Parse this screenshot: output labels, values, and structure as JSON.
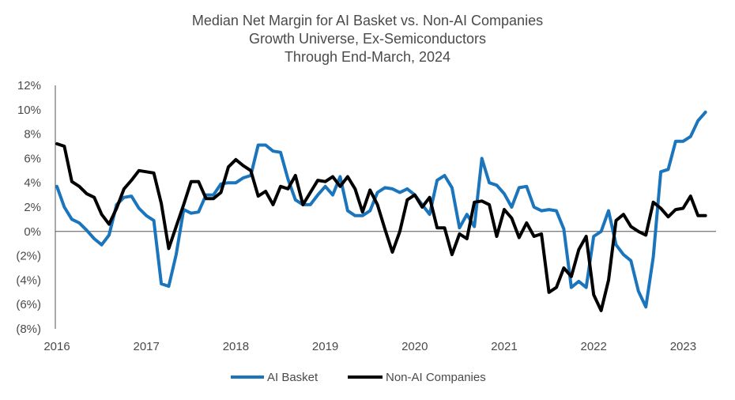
{
  "chart_data": {
    "type": "line",
    "title_lines": [
      "Median Net Margin for AI Basket vs. Non-AI Companies",
      "Growth Universe, Ex-Semiconductors",
      "Through End-March, 2024"
    ],
    "xlabel": "",
    "ylabel": "",
    "x_start": 2016.0,
    "x_step": 0.08333,
    "xlim": [
      2016.0,
      2023.35
    ],
    "ylim": [
      -8,
      12
    ],
    "y_ticks": [
      {
        "value": 12,
        "label": "12%"
      },
      {
        "value": 10,
        "label": "10%"
      },
      {
        "value": 8,
        "label": "8%"
      },
      {
        "value": 6,
        "label": "6%"
      },
      {
        "value": 4,
        "label": "4%"
      },
      {
        "value": 2,
        "label": "2%"
      },
      {
        "value": 0,
        "label": "0%"
      },
      {
        "value": -2,
        "label": "(2%)"
      },
      {
        "value": -4,
        "label": "(4%)"
      },
      {
        "value": -6,
        "label": "(6%)"
      },
      {
        "value": -8,
        "label": "(8%)"
      }
    ],
    "x_ticks": [
      {
        "value": 2016,
        "label": "2016"
      },
      {
        "value": 2017,
        "label": "2017"
      },
      {
        "value": 2018,
        "label": "2018"
      },
      {
        "value": 2019,
        "label": "2019"
      },
      {
        "value": 2020,
        "label": "2020"
      },
      {
        "value": 2021,
        "label": "2021"
      },
      {
        "value": 2022,
        "label": "2022"
      },
      {
        "value": 2023,
        "label": "2023"
      }
    ],
    "legend_position": "bottom",
    "series": [
      {
        "name": "AI Basket",
        "color": "#1a75bc",
        "values": [
          3.7,
          2.0,
          1.0,
          0.7,
          0.1,
          -0.6,
          -1.1,
          -0.3,
          2.2,
          2.8,
          2.9,
          1.9,
          1.3,
          0.9,
          -4.3,
          -4.5,
          -1.9,
          1.8,
          1.5,
          1.6,
          3.0,
          3.0,
          3.9,
          4.0,
          4.0,
          4.4,
          4.6,
          7.1,
          7.1,
          6.6,
          6.5,
          4.3,
          2.6,
          2.2,
          2.2,
          3.0,
          3.7,
          3.0,
          4.5,
          1.7,
          1.3,
          1.3,
          1.7,
          3.2,
          3.6,
          3.5,
          3.2,
          3.5,
          3.0,
          2.2,
          1.4,
          4.2,
          4.6,
          3.6,
          0.3,
          1.4,
          0.4,
          6.0,
          4.0,
          3.8,
          3.1,
          2.0,
          3.6,
          3.7,
          2.0,
          1.7,
          1.8,
          1.7,
          0.2,
          -4.6,
          -4.1,
          -4.6,
          -0.4,
          0.0,
          1.7,
          -1.1,
          -1.9,
          -2.4,
          -4.9,
          -6.2,
          -2.1,
          4.9,
          5.1,
          7.4,
          7.4,
          7.8,
          9.1,
          9.8
        ]
      },
      {
        "name": "Non-AI Companies",
        "color": "#000000",
        "values": [
          7.2,
          7.0,
          4.1,
          3.7,
          3.1,
          2.8,
          1.4,
          0.6,
          1.9,
          3.5,
          4.2,
          5.0,
          4.9,
          4.8,
          2.3,
          -1.4,
          0.4,
          2.2,
          4.1,
          4.1,
          2.7,
          2.7,
          3.2,
          5.3,
          5.9,
          5.4,
          5.0,
          2.9,
          3.3,
          2.2,
          3.7,
          3.5,
          4.6,
          2.2,
          3.2,
          4.2,
          4.1,
          4.5,
          3.7,
          4.5,
          3.5,
          1.6,
          3.4,
          2.2,
          0.2,
          -1.7,
          0.0,
          2.6,
          3.0,
          2.0,
          2.8,
          0.3,
          0.3,
          -1.9,
          -0.2,
          -0.6,
          2.4,
          2.5,
          2.2,
          -0.4,
          1.8,
          1.1,
          -0.5,
          0.7,
          -0.4,
          -0.2,
          -5.0,
          -4.6,
          -3.0,
          -3.7,
          -1.5,
          -0.4,
          -5.2,
          -6.5,
          -4.0,
          0.9,
          1.4,
          0.4,
          0.0,
          -0.3,
          2.4,
          1.9,
          1.2,
          1.8,
          1.9,
          2.9,
          1.3,
          1.3
        ]
      }
    ]
  }
}
